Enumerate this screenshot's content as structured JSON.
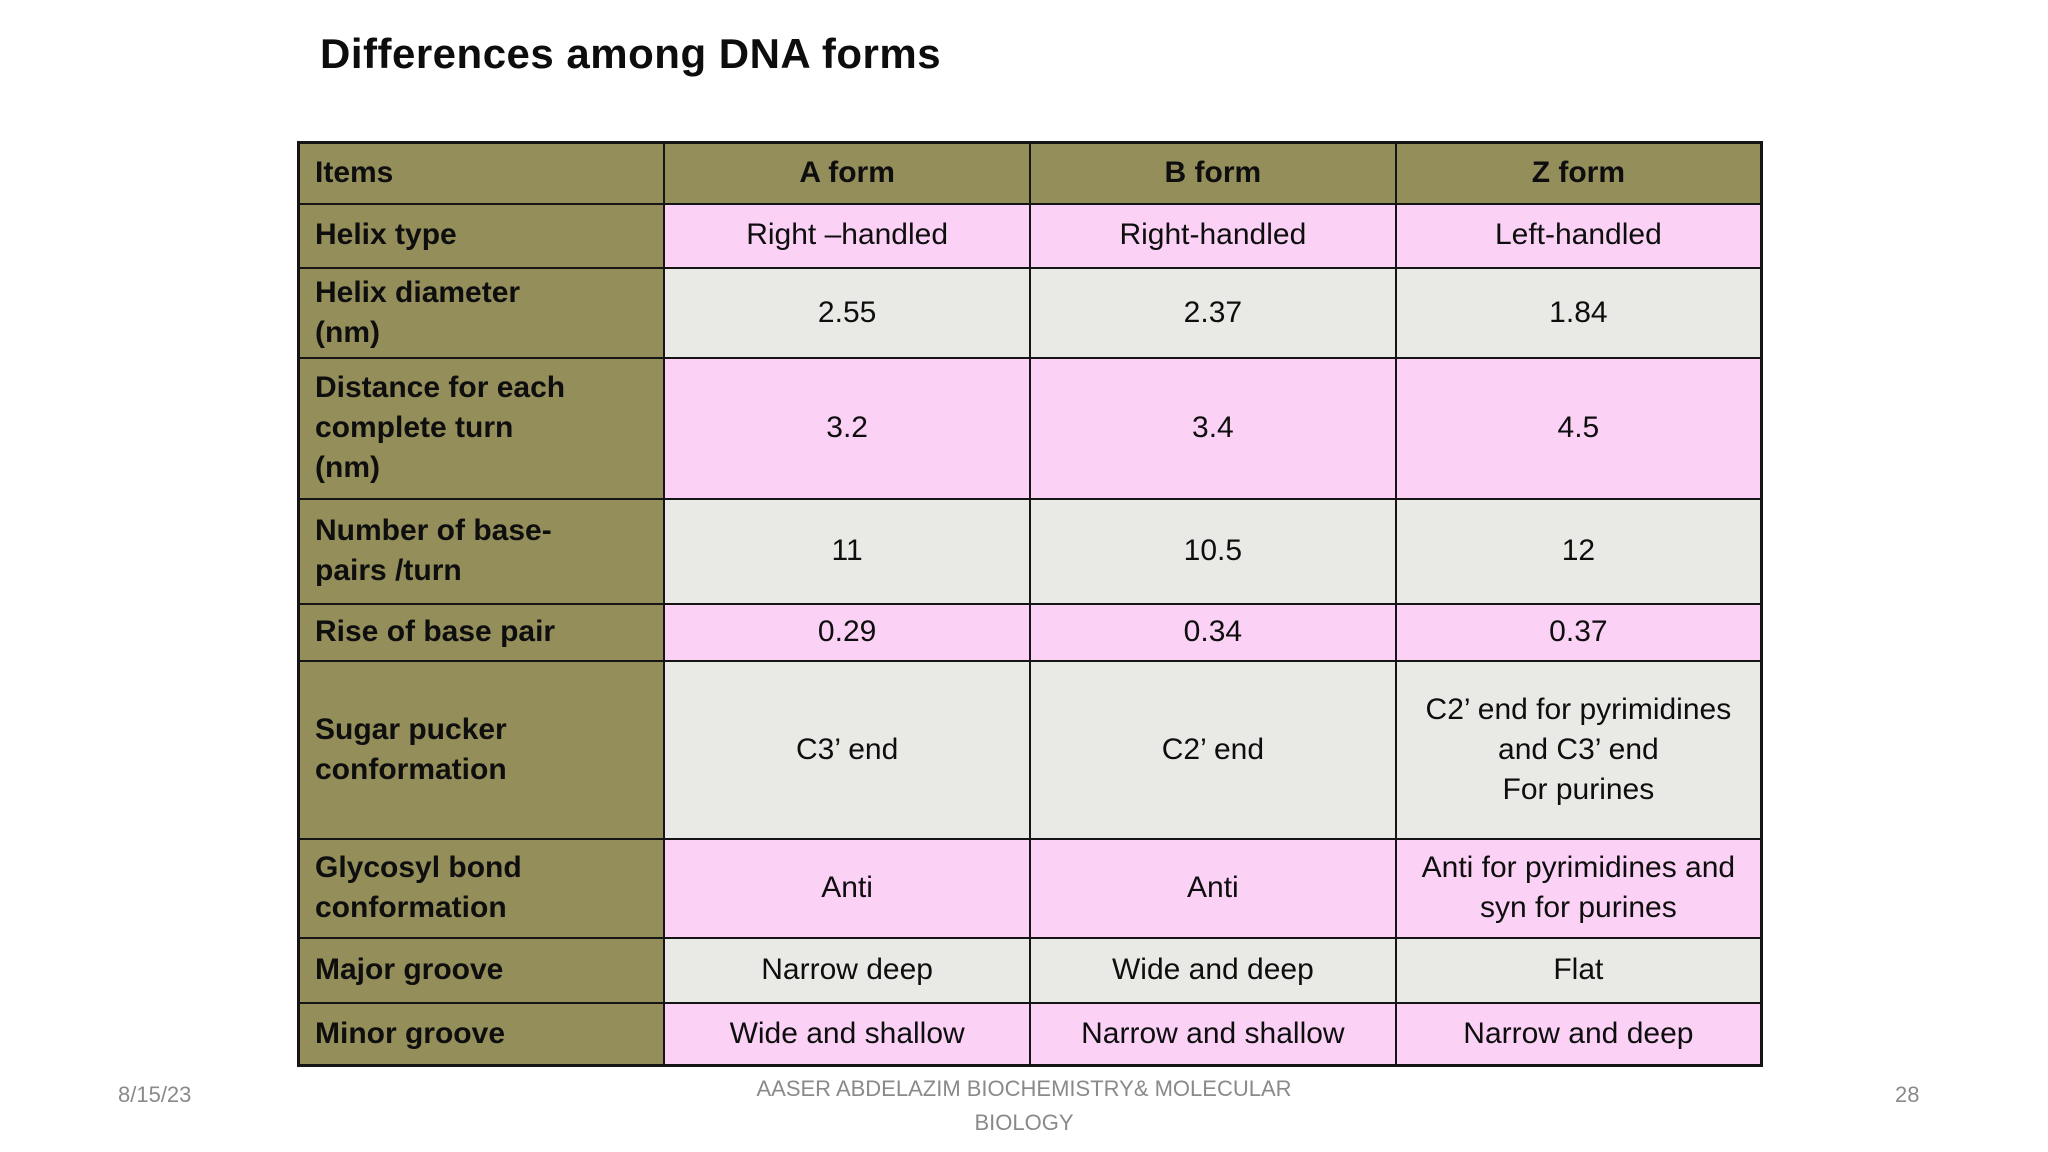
{
  "slide": {
    "title": "Differences among DNA forms",
    "footer": {
      "date": "8/15/23",
      "center_text": "AASER ABDELAZIM  BIOCHEMISTRY& MOLECULAR\nBIOLOGY",
      "page_number": "28"
    }
  },
  "colors": {
    "header_bg": "#948E5B",
    "pink_row_bg": "#FBD1F6",
    "gray_row_bg": "#E9E9E5",
    "border": "#151515",
    "footer_text": "#8a8a8a",
    "title_text": "#0d0d0d"
  },
  "table": {
    "columns": [
      "Items",
      "A form",
      "B form",
      "Z form"
    ],
    "rows": [
      {
        "label": "Helix type",
        "tone": "pink",
        "cells": [
          "Right –handled",
          "Right-handled",
          "Left-handled"
        ]
      },
      {
        "label": "Helix diameter\n(nm)",
        "tone": "gray",
        "cells": [
          "2.55",
          "2.37",
          "1.84"
        ]
      },
      {
        "label": "Distance for each\ncomplete turn\n(nm)",
        "tone": "pink",
        "cells": [
          "3.2",
          "3.4",
          "4.5"
        ]
      },
      {
        "label": "Number of base-\npairs /turn",
        "tone": "gray",
        "cells": [
          "11",
          "10.5",
          "12"
        ]
      },
      {
        "label": "Rise of base pair",
        "tone": "pink",
        "cells": [
          "0.29",
          "0.34",
          "0.37"
        ]
      },
      {
        "label": "Sugar pucker\nconformation",
        "tone": "gray",
        "cells": [
          "C3’ end",
          "C2’ end",
          "C2’ end for pyrimidines and C3’ end\nFor purines"
        ]
      },
      {
        "label": "Glycosyl bond\nconformation",
        "tone": "pink",
        "cells": [
          "Anti",
          "Anti",
          "Anti for pyrimidines and syn for purines"
        ]
      },
      {
        "label": "Major groove",
        "tone": "gray",
        "cells": [
          "Narrow deep",
          "Wide and deep",
          "Flat"
        ]
      },
      {
        "label": "Minor groove",
        "tone": "pink",
        "cells": [
          "Wide and shallow",
          "Narrow and shallow",
          "Narrow and deep"
        ]
      }
    ]
  }
}
